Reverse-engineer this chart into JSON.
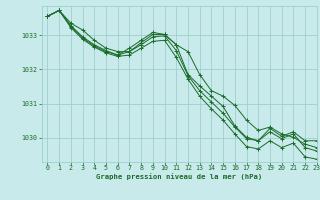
{
  "title": "Graphe pression niveau de la mer (hPa)",
  "bg_color": "#c8eaea",
  "grid_color": "#9fcfcf",
  "line_color": "#1a6b2a",
  "xlim": [
    -0.5,
    23
  ],
  "ylim": [
    1029.3,
    1033.85
  ],
  "yticks": [
    1030,
    1031,
    1032,
    1033
  ],
  "xticks": [
    0,
    1,
    2,
    3,
    4,
    5,
    6,
    7,
    8,
    9,
    10,
    11,
    12,
    13,
    14,
    15,
    16,
    17,
    18,
    19,
    20,
    21,
    22,
    23
  ],
  "series": [
    [
      1033.55,
      1033.72,
      1033.35,
      1033.15,
      1032.85,
      1032.62,
      1032.52,
      1032.52,
      1032.78,
      1033.02,
      1033.02,
      1032.72,
      1032.52,
      1031.85,
      1031.38,
      1031.22,
      1030.95,
      1030.52,
      1030.22,
      1030.32,
      1030.12,
      1030.02,
      1029.82,
      1029.72
    ],
    [
      1033.55,
      1033.72,
      1033.28,
      1032.95,
      1032.72,
      1032.55,
      1032.42,
      1032.62,
      1032.85,
      1033.08,
      1033.02,
      1032.72,
      1031.85,
      1031.52,
      1031.22,
      1030.92,
      1030.35,
      1030.02,
      1029.92,
      1030.28,
      1030.05,
      1030.18,
      1029.92,
      1029.92
    ],
    [
      1033.55,
      1033.72,
      1033.25,
      1032.92,
      1032.68,
      1032.52,
      1032.42,
      1032.52,
      1032.72,
      1032.95,
      1032.98,
      1032.55,
      1031.82,
      1031.38,
      1031.05,
      1030.72,
      1030.32,
      1029.98,
      1029.92,
      1030.18,
      1029.98,
      1030.12,
      1029.72,
      1029.62
    ],
    [
      1033.55,
      1033.72,
      1033.22,
      1032.88,
      1032.65,
      1032.48,
      1032.38,
      1032.42,
      1032.62,
      1032.82,
      1032.85,
      1032.35,
      1031.72,
      1031.22,
      1030.85,
      1030.52,
      1030.12,
      1029.75,
      1029.68,
      1029.92,
      1029.72,
      1029.85,
      1029.45,
      1029.38
    ]
  ]
}
